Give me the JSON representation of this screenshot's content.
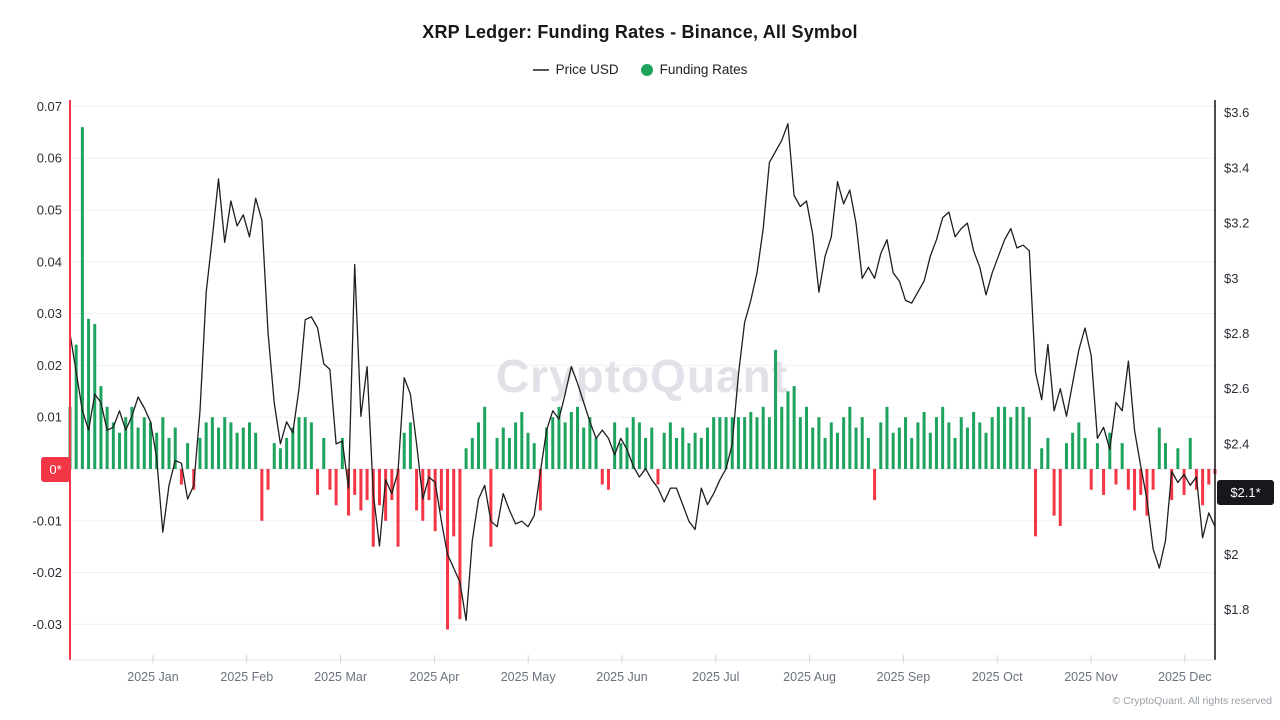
{
  "title": "XRP Ledger: Funding Rates - Binance, All Symbol",
  "legend": {
    "price_label": "Price USD",
    "funding_label": "Funding Rates"
  },
  "watermark": "CryptoQuant",
  "copyright": "© CryptoQuant. All rights reserved",
  "badges": {
    "funding_current": "0*",
    "price_current": "$2.1*"
  },
  "colors": {
    "funding_positive": "#1da35e",
    "funding_negative": "#f23645",
    "price_line": "#1f1f1f",
    "left_axis_line": "#f23645",
    "right_axis_line": "#1f1f1f",
    "gridline": "#f0f0f3",
    "zero_gridline": "#e3e3e9",
    "axis_label": "#2a2e35",
    "month_label": "#6b7280",
    "watermark": "#e1e1e7"
  },
  "chart_data": {
    "type": "mixed",
    "subtype": "line + bar (dual axis)",
    "title": "XRP Ledger: Funding Rates - Binance, All Symbol",
    "x_start": "2024-12-05",
    "x_end": "2025-12-10",
    "step_days": 2,
    "points": 186,
    "x_ticks": [
      "2025 Jan",
      "2025 Feb",
      "2025 Mar",
      "2025 Apr",
      "2025 May",
      "2025 Jun",
      "2025 Jul",
      "2025 Aug",
      "2025 Sep",
      "2025 Oct",
      "2025 Nov",
      "2025 Dec"
    ],
    "left_axis": {
      "name": "Funding Rates",
      "tick_values": [
        0.07,
        0.06,
        0.05,
        0.04,
        0.03,
        0.02,
        0.01,
        -0.01,
        -0.02,
        -0.03
      ],
      "gridline_values": [
        0.07,
        0.06,
        0.05,
        0.04,
        0.03,
        0.02,
        0.01,
        0,
        -0.01,
        -0.02,
        -0.03
      ],
      "range": [
        -0.0369,
        0.0712
      ],
      "current_value_label": "0*"
    },
    "right_axis": {
      "name": "Price USD",
      "tick_values": [
        3.6,
        3.4,
        3.2,
        3.0,
        2.8,
        2.6,
        2.4,
        2.2,
        2.0,
        1.8
      ],
      "tick_labels": [
        "$3.6",
        "$3.4",
        "$3.2",
        "$3",
        "$2.8",
        "$2.6",
        "$2.4",
        "$2.2",
        "$2",
        "$1.8"
      ],
      "range": [
        1.62,
        3.65
      ],
      "current_value_label": "$2.1*"
    },
    "series": [
      {
        "name": "Price USD",
        "type": "line",
        "axis": "right",
        "values": [
          2.8,
          2.66,
          2.52,
          2.45,
          2.58,
          2.55,
          2.45,
          2.46,
          2.52,
          2.45,
          2.5,
          2.57,
          2.53,
          2.48,
          2.35,
          2.08,
          2.25,
          2.34,
          2.33,
          2.2,
          2.25,
          2.52,
          2.95,
          3.15,
          3.36,
          3.13,
          3.28,
          3.19,
          3.23,
          3.15,
          3.29,
          3.21,
          2.8,
          2.55,
          2.4,
          2.48,
          2.44,
          2.6,
          2.85,
          2.86,
          2.82,
          2.69,
          2.67,
          2.4,
          2.41,
          2.24,
          3.05,
          2.5,
          2.68,
          2.22,
          2.03,
          2.27,
          2.22,
          2.3,
          2.64,
          2.58,
          2.4,
          2.2,
          2.28,
          2.26,
          2.12,
          2.0,
          1.95,
          1.9,
          1.76,
          2.05,
          2.2,
          2.25,
          2.12,
          2.1,
          2.22,
          2.16,
          2.11,
          2.12,
          2.1,
          2.14,
          2.3,
          2.45,
          2.52,
          2.49,
          2.58,
          2.68,
          2.62,
          2.55,
          2.48,
          2.42,
          2.45,
          2.42,
          2.36,
          2.42,
          2.38,
          2.32,
          2.28,
          2.31,
          2.27,
          2.24,
          2.19,
          2.24,
          2.24,
          2.18,
          2.12,
          2.09,
          2.24,
          2.18,
          2.22,
          2.27,
          2.31,
          2.4,
          2.65,
          2.84,
          2.92,
          3.02,
          3.18,
          3.42,
          3.46,
          3.5,
          3.56,
          3.3,
          3.26,
          3.28,
          3.16,
          2.95,
          3.08,
          3.15,
          3.35,
          3.27,
          3.32,
          3.2,
          3.0,
          3.04,
          3.0,
          3.09,
          3.14,
          3.02,
          2.99,
          2.92,
          2.91,
          2.95,
          2.99,
          3.08,
          3.14,
          3.22,
          3.24,
          3.15,
          3.18,
          3.2,
          3.1,
          3.04,
          2.94,
          3.02,
          3.08,
          3.14,
          3.18,
          3.11,
          3.12,
          3.1,
          2.66,
          2.56,
          2.76,
          2.52,
          2.6,
          2.5,
          2.62,
          2.74,
          2.82,
          2.72,
          2.42,
          2.46,
          2.38,
          2.55,
          2.52,
          2.7,
          2.45,
          2.32,
          2.2,
          2.02,
          1.95,
          2.05,
          2.3,
          2.26,
          2.29,
          2.25,
          2.28,
          2.06,
          2.15,
          2.1
        ]
      },
      {
        "name": "Funding Rates",
        "type": "bar",
        "axis": "left",
        "values": [
          0.012,
          0.024,
          0.066,
          0.029,
          0.028,
          0.016,
          0.012,
          0.009,
          0.007,
          0.01,
          0.012,
          0.008,
          0.01,
          0.009,
          0.007,
          0.01,
          0.006,
          0.008,
          -0.003,
          0.005,
          -0.004,
          0.006,
          0.009,
          0.01,
          0.008,
          0.01,
          0.009,
          0.007,
          0.008,
          0.009,
          0.007,
          -0.01,
          -0.004,
          0.005,
          0.004,
          0.006,
          0.008,
          0.01,
          0.01,
          0.009,
          -0.005,
          0.006,
          -0.004,
          -0.007,
          0.006,
          -0.009,
          -0.005,
          -0.008,
          -0.006,
          -0.015,
          -0.007,
          -0.01,
          -0.006,
          -0.015,
          0.007,
          0.009,
          -0.008,
          -0.01,
          -0.006,
          -0.012,
          -0.008,
          -0.031,
          -0.013,
          -0.029,
          0.004,
          0.006,
          0.009,
          0.012,
          -0.015,
          0.006,
          0.008,
          0.006,
          0.009,
          0.011,
          0.007,
          0.005,
          -0.008,
          0.008,
          0.01,
          0.012,
          0.009,
          0.011,
          0.012,
          0.008,
          0.01,
          0.006,
          -0.003,
          -0.004,
          0.009,
          0.005,
          0.008,
          0.01,
          0.009,
          0.006,
          0.008,
          -0.003,
          0.007,
          0.009,
          0.006,
          0.008,
          0.005,
          0.007,
          0.006,
          0.008,
          0.01,
          0.01,
          0.01,
          0.01,
          0.01,
          0.01,
          0.011,
          0.01,
          0.012,
          0.01,
          0.023,
          0.012,
          0.015,
          0.016,
          0.01,
          0.012,
          0.008,
          0.01,
          0.006,
          0.009,
          0.007,
          0.01,
          0.012,
          0.008,
          0.01,
          0.006,
          -0.006,
          0.009,
          0.012,
          0.007,
          0.008,
          0.01,
          0.006,
          0.009,
          0.011,
          0.007,
          0.01,
          0.012,
          0.009,
          0.006,
          0.01,
          0.008,
          0.011,
          0.009,
          0.007,
          0.01,
          0.012,
          0.012,
          0.01,
          0.012,
          0.012,
          0.01,
          -0.013,
          0.004,
          0.006,
          -0.009,
          -0.011,
          0.005,
          0.007,
          0.009,
          0.006,
          -0.004,
          0.005,
          -0.005,
          0.007,
          -0.003,
          0.005,
          -0.004,
          -0.008,
          -0.005,
          -0.009,
          -0.004,
          0.008,
          0.005,
          -0.006,
          0.004,
          -0.005,
          0.006,
          -0.004,
          -0.007,
          -0.003,
          -0.001
        ]
      }
    ],
    "legend_position": "top-center",
    "grid": "horizontal only"
  }
}
